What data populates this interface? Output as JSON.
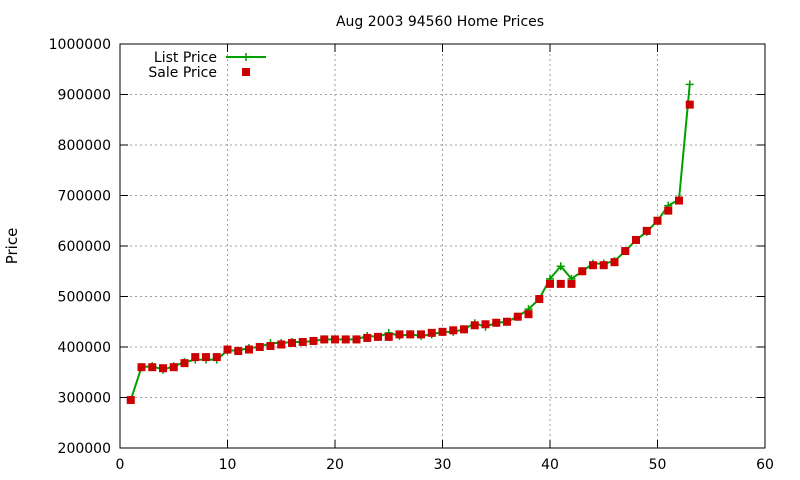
{
  "chart_data": {
    "type": "line",
    "title": "Aug 2003 94560 Home Prices",
    "xlabel": "",
    "ylabel": "Price",
    "xlim": [
      0,
      60
    ],
    "ylim": [
      200000,
      1000000
    ],
    "x_ticks": [
      0,
      10,
      20,
      30,
      40,
      50,
      60
    ],
    "y_ticks": [
      200000,
      300000,
      400000,
      500000,
      600000,
      700000,
      800000,
      900000,
      1000000
    ],
    "grid": true,
    "legend_position": "top-left",
    "series": [
      {
        "name": "List Price",
        "style": "line+plus",
        "color": "#00a000",
        "x": [
          1,
          2,
          3,
          4,
          5,
          6,
          7,
          8,
          9,
          10,
          11,
          12,
          13,
          14,
          15,
          16,
          17,
          18,
          19,
          20,
          21,
          22,
          23,
          24,
          25,
          26,
          27,
          28,
          29,
          30,
          31,
          32,
          33,
          34,
          35,
          36,
          37,
          38,
          39,
          40,
          41,
          42,
          43,
          44,
          45,
          46,
          47,
          48,
          49,
          50,
          51,
          52,
          53
        ],
        "values": [
          295000,
          360000,
          362000,
          355000,
          362000,
          370000,
          375000,
          375000,
          375000,
          393000,
          393000,
          398000,
          400000,
          408000,
          408000,
          410000,
          410000,
          412000,
          415000,
          415000,
          415000,
          415000,
          422000,
          420000,
          428000,
          422000,
          425000,
          422000,
          425000,
          430000,
          430000,
          435000,
          447000,
          440000,
          448000,
          450000,
          460000,
          475000,
          495000,
          535000,
          560000,
          535000,
          550000,
          565000,
          565000,
          570000,
          590000,
          612000,
          628000,
          650000,
          680000,
          692000,
          920000
        ]
      },
      {
        "name": "Sale Price",
        "style": "square",
        "color": "#cc0000",
        "x": [
          1,
          2,
          3,
          4,
          5,
          6,
          7,
          8,
          9,
          10,
          11,
          12,
          13,
          14,
          15,
          16,
          17,
          18,
          19,
          20,
          21,
          22,
          23,
          24,
          25,
          26,
          27,
          28,
          29,
          30,
          31,
          32,
          33,
          34,
          35,
          36,
          37,
          38,
          39,
          40,
          41,
          42,
          43,
          44,
          45,
          46,
          47,
          48,
          49,
          50,
          51,
          52,
          53
        ],
        "values": [
          295000,
          360000,
          360000,
          358000,
          360000,
          368000,
          380000,
          380000,
          380000,
          395000,
          392000,
          395000,
          400000,
          402000,
          405000,
          408000,
          410000,
          412000,
          415000,
          415000,
          415000,
          415000,
          418000,
          420000,
          420000,
          425000,
          425000,
          425000,
          428000,
          430000,
          433000,
          435000,
          443000,
          445000,
          448000,
          450000,
          460000,
          465000,
          495000,
          525000,
          525000,
          525000,
          550000,
          562000,
          562000,
          568000,
          590000,
          612000,
          630000,
          650000,
          670000,
          690000,
          880000
        ]
      }
    ]
  }
}
